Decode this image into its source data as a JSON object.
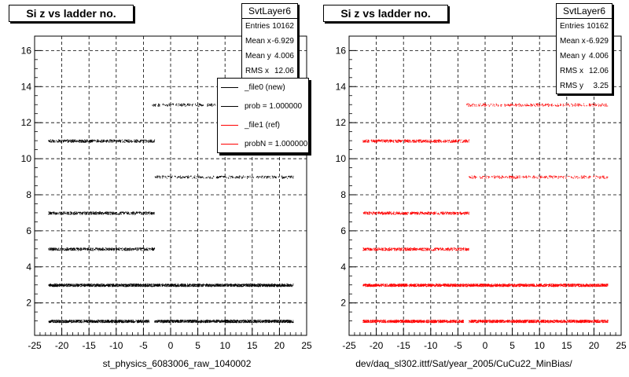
{
  "colors": {
    "ref_series": "#ff0000",
    "new_series": "#000000",
    "grid": "#000000"
  },
  "panels": [
    {
      "title": "Si z vs ladder no.",
      "stats": {
        "name": "SvtLayer6",
        "rows": [
          {
            "label": "Entries",
            "value": "10162"
          },
          {
            "label": "Mean x",
            "value": "-6.929"
          },
          {
            "label": "Mean y",
            "value": "4.006"
          },
          {
            "label": "RMS x",
            "value": "12.06"
          }
        ]
      },
      "legend": [
        {
          "label": "_file0 (new)",
          "color": "#000000"
        },
        {
          "label": "prob = 1.000000",
          "color": "#000000"
        },
        {
          "label": "_file1 (ref)",
          "color": "#ff0000"
        },
        {
          "label": "probN = 1.000000",
          "color": "#ff0000"
        }
      ],
      "xlabel": "st_physics_6083006_raw_1040002"
    },
    {
      "title": "Si z vs ladder no.",
      "stats": {
        "name": "SvtLayer6",
        "rows": [
          {
            "label": "Entries",
            "value": "10162"
          },
          {
            "label": "Mean x",
            "value": "-6.929"
          },
          {
            "label": "Mean y",
            "value": "4.006"
          },
          {
            "label": "RMS x",
            "value": "12.06"
          },
          {
            "label": "RMS y",
            "value": "3.25"
          }
        ]
      },
      "xlabel": "dev/daq_sl302.ittf/Sat/year_2005/CuCu22_MinBias/"
    }
  ],
  "chart_data": [
    {
      "type": "scatter",
      "title": "Si z vs ladder no.",
      "xlabel": "st_physics_6083006_raw_1040002",
      "ylabel": "",
      "xlim": [
        -25,
        25
      ],
      "ylim": [
        0.2,
        16.8
      ],
      "xticks": [
        -25,
        -20,
        -15,
        -10,
        -5,
        0,
        5,
        10,
        15,
        20,
        25
      ],
      "yticks": [
        2,
        4,
        6,
        8,
        10,
        12,
        14,
        16
      ],
      "grid": true,
      "color": "#000000",
      "bands": [
        {
          "y": 1,
          "x_ranges": [
            [
              -22.5,
              -4
            ],
            [
              -3,
              22.5
            ]
          ],
          "density": "high"
        },
        {
          "y": 3,
          "x_ranges": [
            [
              -22.5,
              22.5
            ]
          ],
          "density": "high"
        },
        {
          "y": 5,
          "x_ranges": [
            [
              -22.5,
              -3
            ]
          ],
          "density": "medium"
        },
        {
          "y": 7,
          "x_ranges": [
            [
              -22.5,
              -3
            ]
          ],
          "density": "medium"
        },
        {
          "y": 9,
          "x_ranges": [
            [
              -3,
              22.5
            ]
          ],
          "density": "low"
        },
        {
          "y": 11,
          "x_ranges": [
            [
              -22.5,
              -3
            ]
          ],
          "density": "medium"
        },
        {
          "y": 13,
          "x_ranges": [
            [
              -3.5,
              22.5
            ]
          ],
          "density": "low"
        }
      ]
    },
    {
      "type": "scatter",
      "title": "Si z vs ladder no.",
      "xlabel": "dev/daq_sl302.ittf/Sat/year_2005/CuCu22_MinBias/",
      "ylabel": "",
      "xlim": [
        -25,
        25
      ],
      "ylim": [
        0.2,
        16.8
      ],
      "xticks": [
        -25,
        -20,
        -15,
        -10,
        -5,
        0,
        5,
        10,
        15,
        20,
        25
      ],
      "yticks": [
        2,
        4,
        6,
        8,
        10,
        12,
        14,
        16
      ],
      "grid": true,
      "color": "#ff0000",
      "bands": [
        {
          "y": 1,
          "x_ranges": [
            [
              -22.5,
              -4
            ],
            [
              -3,
              22.5
            ]
          ],
          "density": "high"
        },
        {
          "y": 3,
          "x_ranges": [
            [
              -22.5,
              22.5
            ]
          ],
          "density": "high"
        },
        {
          "y": 5,
          "x_ranges": [
            [
              -22.5,
              -3
            ]
          ],
          "density": "medium"
        },
        {
          "y": 7,
          "x_ranges": [
            [
              -22.5,
              -3
            ]
          ],
          "density": "medium"
        },
        {
          "y": 9,
          "x_ranges": [
            [
              -3,
              22.5
            ]
          ],
          "density": "low"
        },
        {
          "y": 11,
          "x_ranges": [
            [
              -22.5,
              -3
            ]
          ],
          "density": "medium"
        },
        {
          "y": 13,
          "x_ranges": [
            [
              -3.5,
              22.5
            ]
          ],
          "density": "low"
        }
      ]
    }
  ]
}
